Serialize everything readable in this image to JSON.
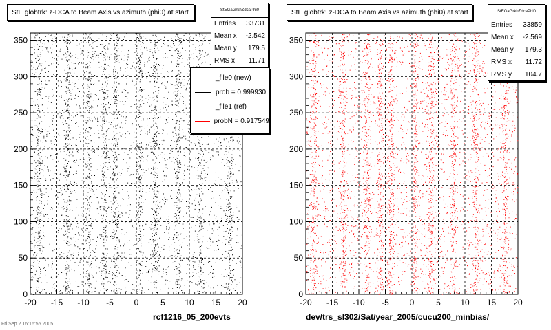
{
  "chart_data": [
    {
      "type": "scatter",
      "title": "StE globtrk: z-DCA to Beam Axis vs azimuth (phi0) at start",
      "xlabel": "rcf1216_05_200evts",
      "ylabel": "",
      "xlim": [
        -20,
        20
      ],
      "ylim": [
        0,
        360
      ],
      "x_ticks": [
        "-20",
        "-15",
        "-10",
        "-5",
        "0",
        "5",
        "10",
        "15",
        "20"
      ],
      "y_ticks": [
        "0",
        "50",
        "100",
        "150",
        "200",
        "250",
        "300",
        "350"
      ],
      "grid": true,
      "marker_color": "#000000",
      "bands": [
        -18.5,
        -13,
        -9,
        -6,
        -4,
        0.5,
        3.5,
        7.8,
        12,
        17.5
      ],
      "stats": {
        "header": "StEGaGrkhZdcaPhi0",
        "rows": [
          {
            "label": "Entries",
            "value": "33731"
          },
          {
            "label": "Mean x",
            "value": "-2.542"
          },
          {
            "label": "Mean y",
            "value": "179.5"
          },
          {
            "label": "RMS x",
            "value": "11.71"
          }
        ]
      },
      "legend": [
        {
          "label": "_file0 (new)",
          "color": "#000000"
        },
        {
          "label": "prob = 0.999930",
          "color": "#000000"
        },
        {
          "label": "_file1 (ref)",
          "color": "#ff0000"
        },
        {
          "label": "probN = 0.917549",
          "color": "#ff0000"
        }
      ]
    },
    {
      "type": "scatter",
      "title": "StE globtrk: z-DCA to Beam Axis vs azimuth (phi0) at start",
      "xlabel": "dev/trs_sl302/Sat/year_2005/cucu200_minbias/",
      "ylabel": "",
      "xlim": [
        -20,
        20
      ],
      "ylim": [
        0,
        360
      ],
      "x_ticks": [
        "-20",
        "-15",
        "-10",
        "-5",
        "0",
        "5",
        "10",
        "15",
        "20"
      ],
      "y_ticks": [
        "0",
        "50",
        "100",
        "150",
        "200",
        "250",
        "300",
        "350"
      ],
      "grid": true,
      "marker_color": "#ff0000",
      "bands": [
        -18.5,
        -13,
        -8.5,
        -6,
        -4,
        0.5,
        3.5,
        7.8,
        12,
        17.5
      ],
      "stats": {
        "header": "StEGaGrkhZdcaPhi0",
        "rows": [
          {
            "label": "Entries",
            "value": "33859"
          },
          {
            "label": "Mean x",
            "value": "-2.569"
          },
          {
            "label": "Mean y",
            "value": "179.3"
          },
          {
            "label": "RMS x",
            "value": "11.72"
          },
          {
            "label": "RMS y",
            "value": "104.7"
          }
        ]
      }
    }
  ],
  "footer": "Fri Sep 2 16:16:55 2005"
}
